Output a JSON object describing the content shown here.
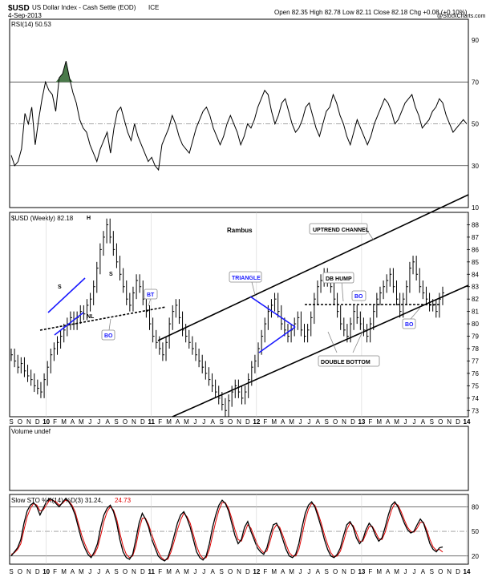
{
  "header": {
    "symbol": "$USD",
    "name": "US Dollar Index - Cash Settle (EOD)",
    "exchange": "ICE",
    "date": "4-Sep-2013",
    "ohlc": "Open 82.35 High 82.78 Low 82.11 Close 82.18 Chg +0.08 (+0.10%)",
    "watermark": "@StockCharts.com"
  },
  "rsi": {
    "label": "RSI(14) 50.53",
    "ticks": [
      10,
      30,
      50,
      70,
      90
    ],
    "values": [
      35,
      30,
      32,
      38,
      55,
      50,
      58,
      40,
      52,
      62,
      70,
      66,
      64,
      56,
      72,
      74,
      80,
      72,
      65,
      60,
      52,
      48,
      46,
      40,
      36,
      32,
      38,
      42,
      46,
      36,
      48,
      56,
      58,
      52,
      46,
      42,
      50,
      44,
      40,
      36,
      32,
      34,
      30,
      28,
      40,
      44,
      48,
      54,
      50,
      44,
      40,
      38,
      36,
      42,
      48,
      52,
      56,
      58,
      54,
      48,
      44,
      40,
      44,
      50,
      54,
      50,
      46,
      40,
      44,
      50,
      48,
      52,
      58,
      62,
      66,
      64,
      56,
      50,
      54,
      60,
      62,
      56,
      50,
      46,
      48,
      52,
      58,
      60,
      54,
      48,
      44,
      50,
      56,
      58,
      64,
      60,
      54,
      50,
      44,
      40,
      46,
      52,
      48,
      44,
      40,
      44,
      50,
      54,
      58,
      62,
      60,
      56,
      50,
      52,
      56,
      60,
      62,
      64,
      58,
      54,
      48,
      50,
      52,
      56,
      58,
      62,
      60,
      54,
      50,
      46,
      48,
      50,
      52,
      50
    ]
  },
  "price": {
    "label": "$USD (Weekly) 82.18",
    "title": "Rambus",
    "ticks": [
      73,
      74,
      75,
      76,
      77,
      78,
      79,
      80,
      81,
      82,
      83,
      84,
      85,
      86,
      87,
      88
    ],
    "closes": [
      77.5,
      77.0,
      76.5,
      76.8,
      76.2,
      75.8,
      75.5,
      75.0,
      74.8,
      74.5,
      75.5,
      76.5,
      77.5,
      78.0,
      78.5,
      79.0,
      79.5,
      80.0,
      80.5,
      80.0,
      80.5,
      81.0,
      80.8,
      81.5,
      82.0,
      83.0,
      84.5,
      86.0,
      87.0,
      88.0,
      87.0,
      86.0,
      85.0,
      84.0,
      83.0,
      82.0,
      81.5,
      82.5,
      83.5,
      83.0,
      82.0,
      81.0,
      80.0,
      79.0,
      78.5,
      78.0,
      77.5,
      78.5,
      80.0,
      81.0,
      81.5,
      80.5,
      79.5,
      79.0,
      78.5,
      78.0,
      77.5,
      77.0,
      76.5,
      76.0,
      75.5,
      75.0,
      74.5,
      74.0,
      73.5,
      73.0,
      73.8,
      74.5,
      75.0,
      74.5,
      74.0,
      74.5,
      75.5,
      76.5,
      77.0,
      78.0,
      79.0,
      80.0,
      81.0,
      81.5,
      82.0,
      81.0,
      80.0,
      79.5,
      79.0,
      79.5,
      80.0,
      80.5,
      79.5,
      79.0,
      79.5,
      80.5,
      82.0,
      83.0,
      83.5,
      84.0,
      83.5,
      83.0,
      82.0,
      81.0,
      80.0,
      79.5,
      79.0,
      80.0,
      81.0,
      80.5,
      80.0,
      79.5,
      79.0,
      80.0,
      81.0,
      82.0,
      82.5,
      83.0,
      83.5,
      84.0,
      83.0,
      82.0,
      81.0,
      82.0,
      83.0,
      84.5,
      85.0,
      84.0,
      83.0,
      82.5,
      82.0,
      81.5,
      81.5,
      81.0,
      82.0,
      82.5
    ]
  },
  "annotations": {
    "s_left": "S",
    "h": "H",
    "s_right": "S",
    "nl": "NL",
    "bo1": "BO",
    "bt": "BT",
    "triangle": "TRIANGLE",
    "uptrend_channel": "UPTREND CHANNEL",
    "db_hump": "DB HUMP",
    "bo2": "BO",
    "bo3": "BO",
    "double_bottom": "DOUBLE BOTTOM"
  },
  "volume": {
    "label": "Volume undef"
  },
  "sto": {
    "label": "Slow STO %K(14) %D(3) 31.24,",
    "d_value": "24.73",
    "ticks": [
      20,
      50,
      80
    ],
    "k": [
      20,
      25,
      30,
      40,
      60,
      75,
      82,
      85,
      80,
      70,
      78,
      86,
      90,
      88,
      84,
      80,
      85,
      90,
      86,
      80,
      70,
      55,
      40,
      30,
      22,
      18,
      25,
      35,
      55,
      70,
      78,
      82,
      74,
      60,
      40,
      25,
      18,
      16,
      22,
      40,
      60,
      72,
      65,
      55,
      40,
      30,
      20,
      16,
      14,
      18,
      30,
      45,
      60,
      70,
      74,
      66,
      55,
      40,
      25,
      18,
      15,
      20,
      35,
      55,
      70,
      82,
      88,
      84,
      75,
      60,
      45,
      35,
      40,
      55,
      62,
      50,
      40,
      30,
      25,
      22,
      30,
      45,
      58,
      60,
      52,
      40,
      28,
      20,
      18,
      22,
      35,
      55,
      72,
      82,
      86,
      80,
      68,
      55,
      40,
      28,
      20,
      18,
      22,
      30,
      45,
      58,
      62,
      55,
      42,
      35,
      40,
      52,
      60,
      55,
      45,
      38,
      42,
      55,
      70,
      82,
      86,
      80,
      70,
      60,
      52,
      48,
      50,
      58,
      65,
      60,
      48,
      35,
      28,
      25,
      30,
      31
    ],
    "d": [
      22,
      24,
      28,
      35,
      52,
      68,
      78,
      84,
      82,
      75,
      76,
      82,
      88,
      88,
      86,
      82,
      84,
      88,
      87,
      82,
      74,
      60,
      46,
      35,
      26,
      20,
      22,
      30,
      45,
      62,
      74,
      80,
      76,
      65,
      48,
      32,
      22,
      18,
      20,
      32,
      52,
      66,
      66,
      58,
      46,
      35,
      25,
      18,
      15,
      16,
      25,
      38,
      52,
      64,
      72,
      68,
      60,
      46,
      32,
      22,
      17,
      18,
      28,
      45,
      62,
      76,
      85,
      85,
      78,
      66,
      52,
      40,
      38,
      48,
      58,
      54,
      44,
      34,
      28,
      24,
      26,
      38,
      52,
      58,
      55,
      45,
      34,
      24,
      20,
      20,
      28,
      45,
      64,
      77,
      84,
      82,
      72,
      60,
      46,
      34,
      24,
      19,
      20,
      26,
      38,
      52,
      60,
      57,
      48,
      38,
      38,
      47,
      56,
      56,
      49,
      41,
      40,
      49,
      63,
      76,
      84,
      82,
      74,
      64,
      55,
      50,
      49,
      54,
      61,
      61,
      52,
      40,
      31,
      27,
      28,
      24.73
    ]
  },
  "x_axis": {
    "labels": [
      "S",
      "O",
      "N",
      "D",
      "10",
      "F",
      "M",
      "A",
      "M",
      "J",
      "J",
      "A",
      "S",
      "O",
      "N",
      "D",
      "11",
      "F",
      "M",
      "A",
      "M",
      "J",
      "J",
      "A",
      "S",
      "O",
      "N",
      "D",
      "12",
      "F",
      "M",
      "A",
      "M",
      "J",
      "J",
      "A",
      "S",
      "O",
      "N",
      "D",
      "13",
      "F",
      "M",
      "A",
      "M",
      "J",
      "J",
      "A",
      "S",
      "O",
      "N",
      "D",
      "14"
    ]
  },
  "chart_data": [
    {
      "type": "line",
      "title": "RSI(14) 50.53",
      "ylim": [
        10,
        100
      ],
      "ticks": [
        10,
        30,
        50,
        70,
        90
      ],
      "grid": true,
      "series": [
        {
          "name": "RSI(14)",
          "values_ref": "rsi.values"
        }
      ]
    },
    {
      "type": "bar",
      "title": "$USD (Weekly) 82.18",
      "ylim": [
        72.5,
        89
      ],
      "x": [
        "S",
        "O",
        "N",
        "D",
        "10",
        "F",
        "M",
        "A",
        "M",
        "J",
        "J",
        "A",
        "S",
        "O",
        "N",
        "D",
        "11",
        "F",
        "M",
        "A",
        "M",
        "J",
        "J",
        "A",
        "S",
        "O",
        "N",
        "D",
        "12",
        "F",
        "M",
        "A",
        "M",
        "J",
        "J",
        "A",
        "S",
        "O",
        "N",
        "D",
        "13",
        "F",
        "M",
        "A",
        "M",
        "J",
        "J",
        "A",
        "S",
        "O",
        "N",
        "D",
        "14"
      ],
      "series": [
        {
          "name": "$USD (Weekly)",
          "values_ref": "price.closes"
        }
      ]
    },
    {
      "type": "line",
      "title": "Slow STO %K(14) %D(3) 31.24, 24.73",
      "ylim": [
        10,
        95
      ],
      "ticks": [
        20,
        50,
        80
      ],
      "series": [
        {
          "name": "%K(14)",
          "values_ref": "sto.k"
        },
        {
          "name": "%D(3)",
          "values_ref": "sto.d"
        }
      ]
    }
  ]
}
